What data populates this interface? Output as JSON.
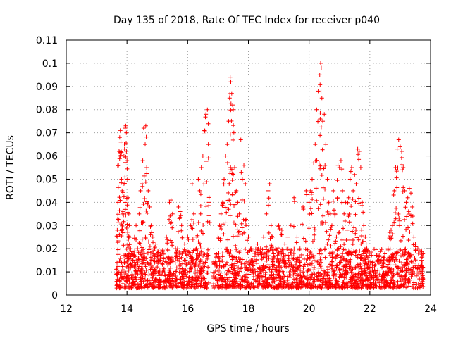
{
  "chart_data": {
    "type": "scatter",
    "title": "Day 135 of 2018, Rate Of TEC Index for receiver p040",
    "xlabel": "GPS time / hours",
    "ylabel": "ROTI / TECUs",
    "xlim": [
      12,
      24
    ],
    "ylim": [
      0,
      0.11
    ],
    "x_ticks": [
      12,
      14,
      16,
      18,
      20,
      22,
      24
    ],
    "x_tick_labels": [
      "12",
      "14",
      "16",
      "18",
      "20",
      "22",
      "24"
    ],
    "y_ticks": [
      0,
      0.01,
      0.02,
      0.03,
      0.04,
      0.05,
      0.06,
      0.07,
      0.08,
      0.09,
      0.1,
      0.11
    ],
    "y_tick_labels": [
      "0",
      "0.01",
      "0.02",
      "0.03",
      "0.04",
      "0.05",
      "0.06",
      "0.07",
      "0.08",
      "0.09",
      "0.1",
      "0.11"
    ],
    "grid": true,
    "marker": "+",
    "color": "#ff0000",
    "x_range_of_data": [
      13.65,
      23.75
    ],
    "series": [
      {
        "name": "ROTI",
        "points": [
          [
            13.65,
            0.009
          ],
          [
            13.68,
            0.028
          ],
          [
            13.7,
            0.04
          ],
          [
            13.72,
            0.056
          ],
          [
            13.74,
            0.062
          ],
          [
            13.76,
            0.068
          ],
          [
            13.78,
            0.071
          ],
          [
            13.8,
            0.066
          ],
          [
            13.82,
            0.05
          ],
          [
            13.84,
            0.045
          ],
          [
            13.86,
            0.035
          ],
          [
            13.88,
            0.048
          ],
          [
            13.9,
            0.06
          ],
          [
            13.92,
            0.063
          ],
          [
            13.94,
            0.072
          ],
          [
            13.96,
            0.073
          ],
          [
            13.98,
            0.07
          ],
          [
            14.0,
            0.058
          ],
          [
            14.02,
            0.05
          ],
          [
            14.04,
            0.042
          ],
          [
            14.06,
            0.035
          ],
          [
            14.08,
            0.03
          ],
          [
            14.1,
            0.025
          ],
          [
            14.12,
            0.02
          ],
          [
            14.15,
            0.018
          ],
          [
            14.2,
            0.015
          ],
          [
            14.25,
            0.025
          ],
          [
            14.3,
            0.03
          ],
          [
            14.35,
            0.02
          ],
          [
            14.4,
            0.035
          ],
          [
            14.45,
            0.045
          ],
          [
            14.5,
            0.048
          ],
          [
            14.52,
            0.058
          ],
          [
            14.55,
            0.072
          ],
          [
            14.6,
            0.065
          ],
          [
            14.62,
            0.073
          ],
          [
            14.65,
            0.055
          ],
          [
            14.7,
            0.045
          ],
          [
            14.75,
            0.038
          ],
          [
            14.8,
            0.03
          ],
          [
            14.85,
            0.025
          ],
          [
            14.9,
            0.02
          ],
          [
            14.95,
            0.022
          ],
          [
            15.0,
            0.018
          ],
          [
            15.1,
            0.015
          ],
          [
            15.2,
            0.018
          ],
          [
            15.3,
            0.025
          ],
          [
            15.4,
            0.04
          ],
          [
            15.45,
            0.041
          ],
          [
            15.5,
            0.035
          ],
          [
            15.6,
            0.02
          ],
          [
            15.7,
            0.038
          ],
          [
            15.75,
            0.036
          ],
          [
            15.8,
            0.03
          ],
          [
            15.9,
            0.022
          ],
          [
            16.0,
            0.025
          ],
          [
            16.1,
            0.03
          ],
          [
            16.15,
            0.048
          ],
          [
            16.2,
            0.035
          ],
          [
            16.3,
            0.025
          ],
          [
            16.35,
            0.05
          ],
          [
            16.4,
            0.045
          ],
          [
            16.45,
            0.055
          ],
          [
            16.5,
            0.06
          ],
          [
            16.55,
            0.071
          ],
          [
            16.6,
            0.078
          ],
          [
            16.65,
            0.08
          ],
          [
            16.68,
            0.065
          ],
          [
            16.7,
            0.04
          ],
          [
            17.0,
            0.025
          ],
          [
            17.05,
            0.03
          ],
          [
            17.1,
            0.035
          ],
          [
            17.15,
            0.04
          ],
          [
            17.2,
            0.05
          ],
          [
            17.25,
            0.06
          ],
          [
            17.3,
            0.065
          ],
          [
            17.35,
            0.075
          ],
          [
            17.38,
            0.085
          ],
          [
            17.4,
            0.094
          ],
          [
            17.42,
            0.092
          ],
          [
            17.45,
            0.087
          ],
          [
            17.48,
            0.082
          ],
          [
            17.5,
            0.08
          ],
          [
            17.52,
            0.07
          ],
          [
            17.55,
            0.055
          ],
          [
            17.6,
            0.045
          ],
          [
            17.65,
            0.04
          ],
          [
            17.7,
            0.035
          ],
          [
            17.75,
            0.067
          ],
          [
            17.8,
            0.05
          ],
          [
            17.85,
            0.056
          ],
          [
            17.9,
            0.048
          ],
          [
            17.95,
            0.03
          ],
          [
            18.0,
            0.025
          ],
          [
            18.1,
            0.02
          ],
          [
            18.2,
            0.018
          ],
          [
            18.3,
            0.022
          ],
          [
            18.4,
            0.02
          ],
          [
            18.5,
            0.025
          ],
          [
            18.6,
            0.035
          ],
          [
            18.65,
            0.045
          ],
          [
            18.7,
            0.048
          ],
          [
            18.75,
            0.03
          ],
          [
            18.8,
            0.025
          ],
          [
            18.9,
            0.02
          ],
          [
            19.0,
            0.03
          ],
          [
            19.1,
            0.028
          ],
          [
            19.2,
            0.022
          ],
          [
            19.3,
            0.025
          ],
          [
            19.4,
            0.03
          ],
          [
            19.5,
            0.042
          ],
          [
            19.6,
            0.025
          ],
          [
            19.7,
            0.02
          ],
          [
            19.8,
            0.038
          ],
          [
            19.9,
            0.045
          ],
          [
            20.0,
            0.04
          ],
          [
            20.05,
            0.045
          ],
          [
            20.1,
            0.05
          ],
          [
            20.15,
            0.057
          ],
          [
            20.2,
            0.065
          ],
          [
            20.25,
            0.08
          ],
          [
            20.3,
            0.088
          ],
          [
            20.35,
            0.095
          ],
          [
            20.38,
            0.1
          ],
          [
            20.4,
            0.098
          ],
          [
            20.42,
            0.085
          ],
          [
            20.45,
            0.075
          ],
          [
            20.5,
            0.078
          ],
          [
            20.55,
            0.065
          ],
          [
            20.6,
            0.05
          ],
          [
            20.65,
            0.04
          ],
          [
            20.7,
            0.035
          ],
          [
            20.75,
            0.03
          ],
          [
            20.8,
            0.045
          ],
          [
            20.85,
            0.035
          ],
          [
            20.9,
            0.025
          ],
          [
            20.95,
            0.056
          ],
          [
            21.0,
            0.055
          ],
          [
            21.05,
            0.058
          ],
          [
            21.1,
            0.045
          ],
          [
            21.15,
            0.035
          ],
          [
            21.2,
            0.04
          ],
          [
            21.25,
            0.028
          ],
          [
            21.3,
            0.042
          ],
          [
            21.35,
            0.05
          ],
          [
            21.4,
            0.055
          ],
          [
            21.45,
            0.045
          ],
          [
            21.5,
            0.052
          ],
          [
            21.55,
            0.048
          ],
          [
            21.6,
            0.063
          ],
          [
            21.65,
            0.062
          ],
          [
            21.7,
            0.055
          ],
          [
            21.75,
            0.04
          ],
          [
            21.8,
            0.03
          ],
          [
            21.85,
            0.025
          ],
          [
            21.9,
            0.02
          ],
          [
            22.0,
            0.012
          ],
          [
            22.2,
            0.01
          ],
          [
            22.4,
            0.012
          ],
          [
            22.6,
            0.02
          ],
          [
            22.65,
            0.027
          ],
          [
            22.7,
            0.028
          ],
          [
            22.75,
            0.03
          ],
          [
            22.8,
            0.045
          ],
          [
            22.85,
            0.055
          ],
          [
            22.9,
            0.063
          ],
          [
            22.95,
            0.067
          ],
          [
            23.0,
            0.064
          ],
          [
            23.05,
            0.062
          ],
          [
            23.1,
            0.055
          ],
          [
            23.15,
            0.045
          ],
          [
            23.2,
            0.04
          ],
          [
            23.25,
            0.042
          ],
          [
            23.3,
            0.046
          ],
          [
            23.35,
            0.044
          ],
          [
            23.4,
            0.038
          ],
          [
            23.45,
            0.025
          ],
          [
            23.5,
            0.022
          ],
          [
            23.6,
            0.018
          ],
          [
            23.7,
            0.015
          ],
          [
            23.75,
            0.012
          ]
        ],
        "background_band": {
          "segments": [
            [
              13.65,
              16.7
            ],
            [
              16.85,
              23.75
            ]
          ],
          "typical_range": [
            0.003,
            0.02
          ]
        }
      }
    ]
  }
}
